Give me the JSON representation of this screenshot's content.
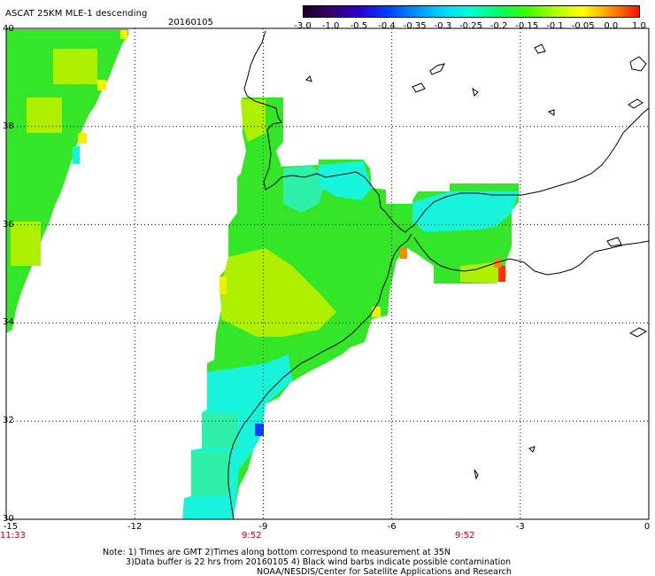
{
  "header": {
    "title": "ASCAT 25KM MLE-1 descending",
    "date": "20160105"
  },
  "colorbar": {
    "labels": [
      "-3.0",
      "-1.0",
      "-0.5",
      "-0.4",
      "-0.35",
      "-0.3",
      "-0.25",
      "-0.2",
      "-0.15",
      "-0.1",
      "-0.05",
      "0.0",
      "1.0"
    ],
    "colors": [
      "#1a0020",
      "#3a0070",
      "#2a00c8",
      "#0040ff",
      "#0090ff",
      "#00d8ff",
      "#00ffd0",
      "#00ff60",
      "#40ff00",
      "#b0ff00",
      "#ffff00",
      "#ff9000",
      "#ff1000"
    ]
  },
  "map": {
    "lon_min": -15,
    "lon_max": 0,
    "lat_min": 30,
    "lat_max": 40,
    "xticks": [
      "-15",
      "-12",
      "-9",
      "-6",
      "-3",
      "0"
    ],
    "yticks": [
      "40",
      "38",
      "36",
      "34",
      "32",
      "30"
    ]
  },
  "times": {
    "t1": "11:33",
    "t2": "9:52",
    "t3": "9:52"
  },
  "footer": {
    "line1": "Note: 1) Times are GMT 2)Times along bottom correspond to measurement at 35N",
    "line2": "3)Data buffer is 22 hrs from 20160105 4) Black wind barbs indicate possible contamination",
    "line3": "NOAA/NESDIS/Center for Satellite Applications and Research"
  },
  "legend_colors": {
    "green": "#33e628",
    "yellowgreen": "#aef000",
    "cyan": "#18f4dc",
    "cyan2": "#2ef0a8",
    "yellow": "#f2f200",
    "orange": "#ff8a00",
    "red": "#ff3000",
    "blue": "#1040ff"
  }
}
